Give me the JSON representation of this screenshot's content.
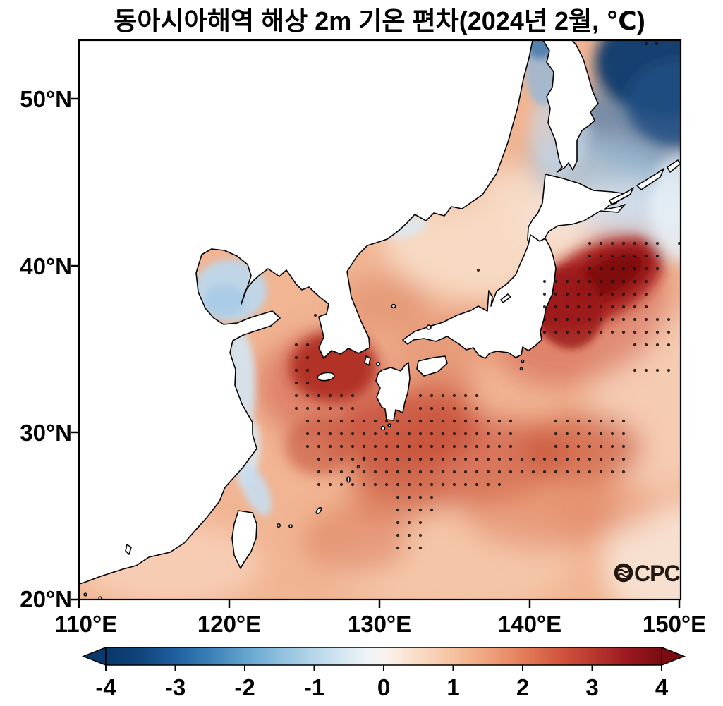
{
  "title": "동아시아해역 해상 2m 기온 편차(2024년 2월, ℃)",
  "logo": {
    "o_glyph": "O-with-waves",
    "text": "CPC"
  },
  "axes": {
    "y_ticks": [
      "50°N",
      "40°N",
      "30°N",
      "20°N"
    ],
    "x_ticks": [
      "110°E",
      "120°E",
      "130°E",
      "140°E",
      "150°E"
    ]
  },
  "colorbar": {
    "orientation": "horizontal",
    "range": [
      -4,
      4
    ],
    "extended_arrows": "both",
    "tick_labels": [
      "-4",
      "-3",
      "-2",
      "-1",
      "0",
      "1",
      "2",
      "3",
      "4"
    ],
    "stops": [
      [
        0,
        "#09386a"
      ],
      [
        6,
        "#10447a"
      ],
      [
        12.5,
        "#1f5fa0"
      ],
      [
        19,
        "#3c82b8"
      ],
      [
        25,
        "#62a3cc"
      ],
      [
        31,
        "#8cbedd"
      ],
      [
        37.5,
        "#b6d6ea"
      ],
      [
        43,
        "#d8e8f3"
      ],
      [
        47,
        "#edf3f7"
      ],
      [
        50,
        "#f9f3ee"
      ],
      [
        53,
        "#fbe9dc"
      ],
      [
        56,
        "#f9dcc6"
      ],
      [
        62.5,
        "#f6c2a0"
      ],
      [
        69,
        "#efa17b"
      ],
      [
        75,
        "#e37e5a"
      ],
      [
        81,
        "#d45940"
      ],
      [
        87.5,
        "#ba392f"
      ],
      [
        94,
        "#9a181f"
      ],
      [
        100,
        "#7a0c12"
      ]
    ]
  },
  "chart_data": {
    "type": "heatmap",
    "title": "동아시아해역 해상 2m 기온 편차(2024년 2월, ℃)",
    "units": "°C",
    "lon_range": [
      110,
      150
    ],
    "lat_range": [
      20,
      53.5
    ],
    "anomaly_scale": [
      -4,
      4
    ],
    "land_color": "#ffffff",
    "ocean_base": "#f1b593",
    "regions": [
      {
        "area": "Sea of Okhotsk, NE corner (146-150E, 48-53N)",
        "anomaly_c": -4
      },
      {
        "area": "Tatar Strait (141E, 50-53N)",
        "anomaly_c": -1.5
      },
      {
        "area": "East of Sakhalin / NE of Hokkaido (144-150E, 44-47N)",
        "anomaly_c": -1
      },
      {
        "area": "Kuroshio extension east of Tohoku, Japan (142-148E, 36-40N)",
        "anomaly_c": 3.5
      },
      {
        "area": "South and west of Korea / Jeju (124-128E, 32-35N)",
        "anomaly_c": 2.5
      },
      {
        "area": "East China Sea and south of Japan (124-141E, 27-31N)",
        "anomaly_c": 2
      },
      {
        "area": "Sea of Japan (130-140E, 36-46N)",
        "anomaly_c": 0.8
      },
      {
        "area": "Bohai Sea (118-122E, 38-41N)",
        "anomaly_c": -0.7
      },
      {
        "area": "Chinese coastal strip, Jiangsu-Zhejiang (121-123E, 27-35N)",
        "anomaly_c": -0.4
      },
      {
        "area": "Taiwan Strait north of Taiwan",
        "anomaly_c": -0.3
      },
      {
        "area": "South China Sea corner and remaining open ocean",
        "anomaly_c": 1
      }
    ],
    "stippling": {
      "marks": "regular grid of small black dots",
      "over": "strongest warm-anomaly waters south of Korea/Japan, east of Tohoku, and two dots in the cold NE corner"
    },
    "field": [
      [
        690,
        330,
        150,
        95,
        0,
        "#f8dbc6",
        0.95,
        "l"
      ],
      [
        560,
        190,
        130,
        130,
        0,
        "#f5cfb6",
        0.9,
        "l"
      ],
      [
        640,
        240,
        60,
        60,
        0,
        "#eeb393",
        0.5,
        "l"
      ],
      [
        935,
        565,
        95,
        130,
        0,
        "#f6cfb7",
        0.85,
        "l"
      ],
      [
        640,
        800,
        170,
        70,
        0,
        "#f5c9ac",
        0.8,
        "l"
      ],
      [
        240,
        800,
        130,
        60,
        0,
        "#f7d2bc",
        0.8,
        "l"
      ],
      [
        800,
        310,
        65,
        32,
        0,
        "#f6e2d6",
        0.85,
        "l"
      ],
      [
        950,
        800,
        95,
        85,
        0,
        "#f8e7da",
        0.85,
        "l"
      ],
      [
        825,
        455,
        130,
        85,
        -22,
        "#ce5240",
        0.5,
        "l"
      ],
      [
        893,
        345,
        75,
        38,
        -30,
        "#bf4130",
        0.6,
        "l"
      ],
      [
        458,
        548,
        95,
        75,
        0,
        "#cb5340",
        0.5,
        "l"
      ],
      [
        575,
        612,
        105,
        58,
        -10,
        "#bd3a29",
        0.7,
        "l"
      ],
      [
        655,
        655,
        150,
        62,
        -5,
        "#c64d36",
        0.6,
        "l"
      ],
      [
        825,
        635,
        85,
        48,
        0,
        "#c75136",
        0.65,
        "l"
      ],
      [
        560,
        695,
        65,
        48,
        0,
        "#cf674a",
        0.55,
        "l"
      ],
      [
        545,
        432,
        65,
        42,
        0,
        "#dd8a67",
        0.6,
        "l"
      ],
      [
        640,
        485,
        90,
        42,
        -18,
        "#dd8663",
        0.5,
        "l"
      ],
      [
        765,
        725,
        110,
        55,
        0,
        "#db7b57",
        0.45,
        "l"
      ],
      [
        860,
        720,
        80,
        40,
        0,
        "#e18a66",
        0.35,
        "l"
      ],
      [
        505,
        765,
        75,
        48,
        0,
        "#d97553",
        0.5,
        "l"
      ],
      [
        620,
        560,
        55,
        35,
        -20,
        "#cc5a41",
        0.45,
        "l"
      ],
      [
        908,
        192,
        115,
        58,
        22,
        "#447aae",
        0.7,
        "l"
      ],
      [
        872,
        252,
        125,
        52,
        14,
        "#9fc3de",
        0.75,
        "l"
      ],
      [
        912,
        302,
        95,
        42,
        8,
        "#d3e4f1",
        0.85,
        "l"
      ],
      [
        845,
        403,
        105,
        52,
        -27,
        "#a51e1d",
        0.95,
        "m"
      ],
      [
        864,
        391,
        58,
        28,
        -27,
        "#7d0a10",
        0.95,
        "m"
      ],
      [
        472,
        520,
        62,
        50,
        0,
        "#ad291f",
        0.9,
        "m"
      ],
      [
        452,
        632,
        48,
        42,
        0,
        "#c85a40",
        0.65,
        "m"
      ],
      [
        958,
        88,
        115,
        80,
        0,
        "#0f3c6d",
        0.97,
        "m"
      ],
      [
        962,
        145,
        75,
        62,
        0,
        "#1d4d82",
        0.85,
        "m"
      ],
      [
        793,
        185,
        42,
        62,
        0,
        "#c6dbed",
        0.6,
        "m"
      ],
      [
        963,
        295,
        42,
        75,
        0,
        "#e9f1f8",
        0.8,
        "m"
      ],
      [
        806,
        437,
        48,
        58,
        -12,
        "#9a1919",
        0.8,
        "s"
      ],
      [
        770,
        95,
        26,
        55,
        0,
        "#93b8d8",
        0.8,
        "s"
      ],
      [
        766,
        62,
        22,
        22,
        0,
        "#4878aa",
        0.85,
        "s"
      ],
      [
        326,
        412,
        52,
        44,
        0,
        "#bdd7ea",
        0.95,
        "s"
      ],
      [
        318,
        426,
        30,
        23,
        0,
        "#a9cbe5",
        0.9,
        "s"
      ],
      [
        340,
        548,
        22,
        80,
        0,
        "#d3e6f3",
        0.9,
        "s"
      ],
      [
        352,
        645,
        16,
        48,
        8,
        "#d9eaf5",
        0.85,
        "s"
      ],
      [
        362,
        694,
        17,
        40,
        -25,
        "#c7ddef",
        0.9,
        "s"
      ],
      [
        577,
        323,
        30,
        13,
        -18,
        "#d9eaf5",
        0.8,
        "s"
      ]
    ],
    "stipple_rects": [
      [
        414,
        480,
        446,
        550
      ],
      [
        414,
        550,
        510,
        586
      ],
      [
        586,
        550,
        678,
        586
      ],
      [
        430,
        586,
        726,
        640
      ],
      [
        446,
        640,
        886,
        678
      ],
      [
        446,
        678,
        714,
        698
      ],
      [
        784,
        592,
        886,
        640
      ],
      [
        554,
        698,
        624,
        724
      ],
      [
        554,
        724,
        602,
        782
      ],
      [
        764,
        388,
        918,
        484
      ],
      [
        824,
        336,
        942,
        392
      ],
      [
        892,
        452,
        965,
        494
      ],
      [
        892,
        514,
        965,
        536
      ]
    ],
    "stipple_points": [
      [
        447,
        447
      ],
      [
        678,
        383
      ],
      [
        963,
        345
      ],
      [
        916,
        62
      ],
      [
        931,
        62
      ]
    ]
  }
}
